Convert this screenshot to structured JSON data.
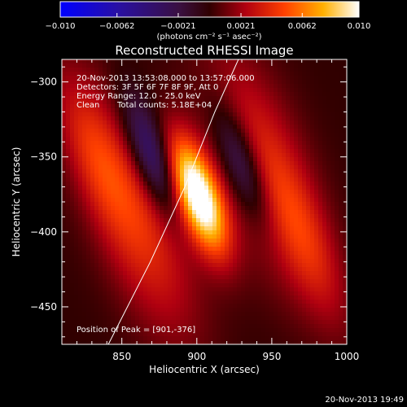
{
  "chart_data": {
    "type": "heatmap",
    "title": "Reconstructed RHESSI Image",
    "xlabel": "Heliocentric X (arcsec)",
    "ylabel": "Heliocentric Y (arcsec)",
    "xlim": [
      810,
      1000
    ],
    "ylim": [
      -475,
      -285
    ],
    "x_ticks": [
      850,
      900,
      950,
      1000
    ],
    "y_ticks": [
      -300,
      -350,
      -400,
      -450
    ],
    "x_tick_labels": [
      "850",
      "900",
      "950",
      "1000"
    ],
    "y_tick_labels": [
      "−300",
      "−350",
      "−400",
      "−450"
    ],
    "colorbar": {
      "min": -0.01,
      "max": 0.01,
      "tick_values": [
        -0.01,
        -0.0062,
        -0.0021,
        0.0021,
        0.0062,
        0.01
      ],
      "tick_labels": [
        "−0.010",
        "−0.0062",
        "−0.0021",
        "0.0021",
        "0.0062",
        "0.010"
      ],
      "units_label": "(photons cm⁻² s⁻¹ asec⁻²)"
    },
    "annotations": {
      "time_range": "20-Nov-2013 13:53:08.000 to 13:57:06.000",
      "detectors": "Detectors: 3F 5F 6F 7F 8F 9F, Att 0",
      "energy_range": "Energy Range: 12.0 - 25.0 keV",
      "algorithm": "Clean",
      "total_counts": "Total counts: 5.18E+04",
      "peak_position": "Position of Peak = [901,-376]"
    },
    "peak": {
      "x": 901,
      "y": -376,
      "value": 0.01
    },
    "components": [
      {
        "x": 901,
        "y": -376,
        "sx": 10,
        "sy": 28,
        "amp": 0.0115
      },
      {
        "x": 860,
        "y": -390,
        "sx": 20,
        "sy": 60,
        "amp": 0.0042
      },
      {
        "x": 945,
        "y": -360,
        "sx": 20,
        "sy": 60,
        "amp": 0.004
      },
      {
        "x": 870,
        "y": -350,
        "sx": 9,
        "sy": 30,
        "amp": -0.0055
      },
      {
        "x": 930,
        "y": -355,
        "sx": 9,
        "sy": 30,
        "amp": -0.005
      },
      {
        "x": 830,
        "y": -345,
        "sx": 12,
        "sy": 40,
        "amp": 0.0025
      },
      {
        "x": 975,
        "y": -410,
        "sx": 12,
        "sy": 40,
        "amp": 0.0025
      }
    ],
    "limb_line": {
      "x": [
        841,
        869,
        892,
        912,
        930,
        945
      ],
      "y": [
        -475,
        -420,
        -370,
        -320,
        -280,
        -240
      ]
    },
    "timestamp": "20-Nov-2013 19:49"
  }
}
